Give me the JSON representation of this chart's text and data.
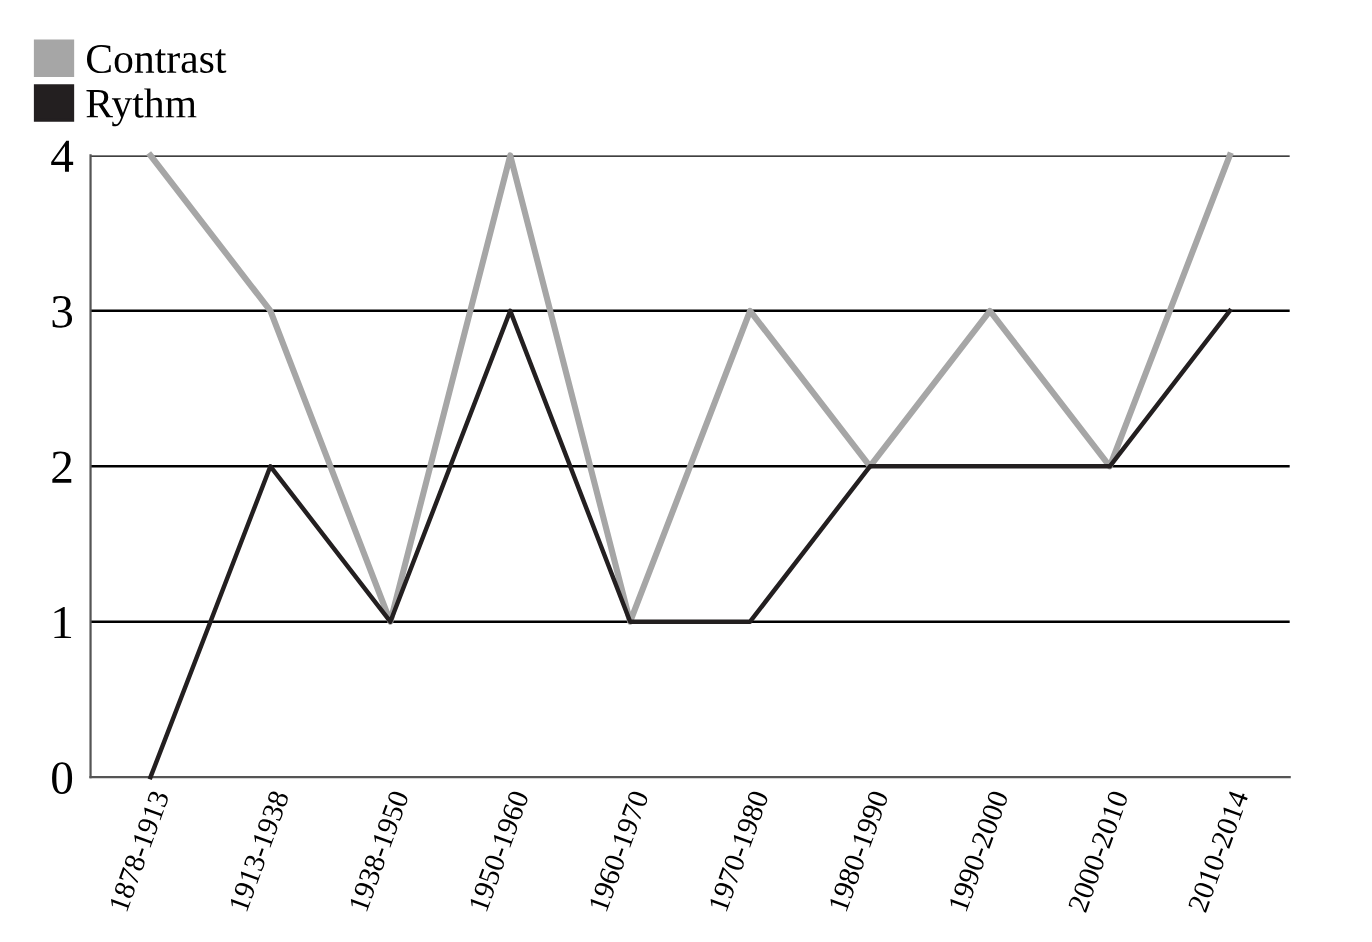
{
  "chart_data": {
    "type": "line",
    "categories": [
      "1878-1913",
      "1913-1938",
      "1938-1950",
      "1950-1960",
      "1960-1970",
      "1970-1980",
      "1980-1990",
      "1990-2000",
      "2000-2010",
      "2010-2014"
    ],
    "series": [
      {
        "name": "Contrast",
        "color": "#a6a6a6",
        "values": [
          4,
          3,
          1,
          4,
          1,
          3,
          2,
          3,
          2,
          4
        ]
      },
      {
        "name": "Rythm",
        "color": "#231f20",
        "values": [
          0,
          2,
          1,
          3,
          1,
          1,
          2,
          2,
          2,
          3
        ]
      }
    ],
    "ylim": [
      0,
      4
    ],
    "yticks": [
      0,
      1,
      2,
      3,
      4
    ],
    "grid": "y",
    "legend": "top left",
    "marker": "none",
    "line_style": "solid"
  }
}
